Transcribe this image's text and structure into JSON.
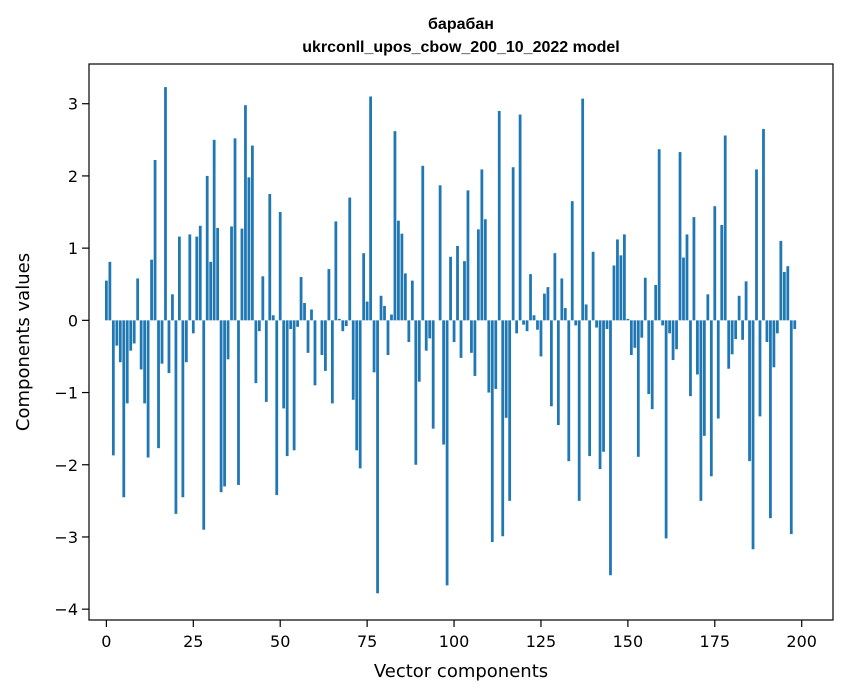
{
  "chart_data": {
    "type": "bar",
    "title_line1": "барабан",
    "title_line2": "ukrconll_upos_cbow_200_10_2022 model",
    "xlabel": "Vector components",
    "ylabel": "Components values",
    "xlim": [
      -5,
      209
    ],
    "ylim": [
      -4.15,
      3.55
    ],
    "xticks": [
      0,
      25,
      50,
      75,
      100,
      125,
      150,
      175,
      200
    ],
    "yticks": [
      -4,
      -3,
      -2,
      -1,
      0,
      1,
      2,
      3
    ],
    "bar_color": "#1f77b4",
    "values": [
      0.55,
      0.81,
      -1.87,
      -0.35,
      -0.58,
      -2.45,
      -1.15,
      -0.42,
      -0.32,
      0.58,
      -0.68,
      -1.15,
      -1.9,
      0.84,
      2.22,
      -1.77,
      -0.6,
      3.23,
      -0.73,
      0.36,
      -2.68,
      1.16,
      -2.45,
      -0.58,
      1.19,
      -0.18,
      1.16,
      1.31,
      -2.9,
      2.0,
      0.81,
      2.5,
      1.28,
      -2.38,
      -2.3,
      -0.54,
      1.3,
      2.52,
      -2.28,
      1.27,
      2.98,
      1.98,
      2.42,
      -0.87,
      -0.15,
      0.61,
      -1.13,
      1.75,
      0.07,
      -2.42,
      1.5,
      -1.22,
      -1.88,
      -0.12,
      -1.8,
      -0.09,
      0.6,
      0.24,
      -0.45,
      0.15,
      -0.9,
      0.0,
      -0.48,
      -0.7,
      0.71,
      -1.15,
      1.37,
      0.02,
      -0.15,
      -0.08,
      1.7,
      -1.1,
      -1.8,
      -2.05,
      0.93,
      0.26,
      3.1,
      -0.72,
      -3.78,
      0.34,
      0.2,
      -0.48,
      0.08,
      2.62,
      1.38,
      1.2,
      0.65,
      -0.3,
      0.55,
      -2.0,
      -0.85,
      2.14,
      -0.42,
      -0.25,
      -1.5,
      0.0,
      1.87,
      -1.72,
      -3.67,
      0.88,
      -0.3,
      1.03,
      -0.52,
      0.82,
      1.8,
      -0.45,
      -0.77,
      1.26,
      2.09,
      1.4,
      -1.0,
      -3.07,
      -0.95,
      2.9,
      -2.99,
      -1.35,
      -2.5,
      2.12,
      -0.18,
      2.85,
      -0.06,
      -0.15,
      0.64,
      0.07,
      -0.13,
      -0.5,
      0.37,
      0.46,
      -1.19,
      0.93,
      -1.45,
      0.58,
      0.17,
      -1.95,
      1.65,
      -0.07,
      -2.5,
      3.07,
      0.22,
      -1.88,
      0.95,
      -0.1,
      -2.06,
      -1.82,
      -0.12,
      -3.53,
      0.76,
      1.12,
      0.9,
      1.19,
      0.02,
      -0.48,
      -0.38,
      -1.89,
      -0.24,
      0.59,
      -1.02,
      -1.23,
      0.49,
      2.37,
      -0.07,
      -3.02,
      -0.18,
      -0.55,
      -0.4,
      2.33,
      0.87,
      1.19,
      -1.05,
      1.43,
      -0.75,
      -2.5,
      -1.6,
      0.36,
      -2.16,
      1.58,
      -1.36,
      1.32,
      2.56,
      -0.67,
      -0.47,
      -0.26,
      0.34,
      -0.27,
      0.54,
      -1.95,
      -3.17,
      2.09,
      -1.33,
      2.65,
      -0.3,
      -2.74,
      -0.65,
      -0.18,
      1.1,
      0.67,
      0.75,
      -2.96,
      -0.12
    ]
  }
}
